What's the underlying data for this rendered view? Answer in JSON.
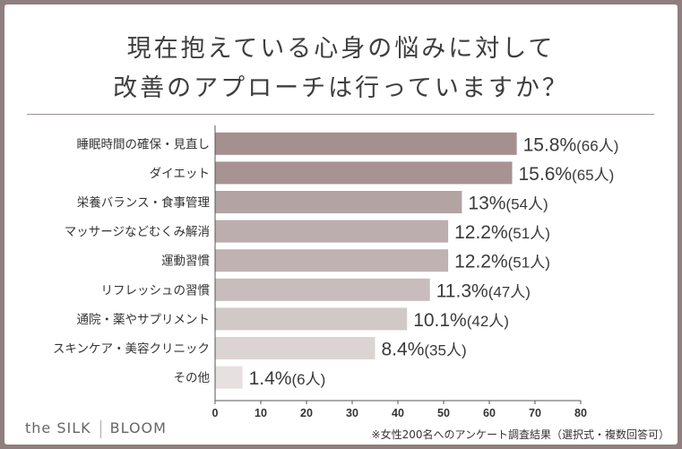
{
  "title_line1": "現在抱えている心身の悩みに対して",
  "title_line2": "改善のアプローチは行っていますか？",
  "brand_left": "the SILK",
  "brand_right": "BLOOM",
  "footnote": "※女性200名へのアンケート調査結果（選択式・複数回答可）",
  "chart_data": {
    "type": "bar",
    "orientation": "horizontal",
    "categories": [
      "睡眠時間の確保・見直し",
      "ダイエット",
      "栄養バランス・食事管理",
      "マッサージなどむくみ解消",
      "運動習慣",
      "リフレッシュの習慣",
      "通院・薬やサプリメント",
      "スキンケア・美容クリニック",
      "その他"
    ],
    "counts": [
      66,
      65,
      54,
      51,
      51,
      47,
      42,
      35,
      6
    ],
    "percent_labels": [
      "15.8%",
      "15.6%",
      "13%",
      "12.2%",
      "12.2%",
      "11.3%",
      "10.1%",
      "8.4%",
      "1.4%"
    ],
    "count_labels": [
      "(66人)",
      "(65人)",
      "(54人)",
      "(51人)",
      "(51人)",
      "(47人)",
      "(42人)",
      "(35人)",
      "(6人)"
    ],
    "xlim": [
      0,
      80
    ],
    "xticks": [
      "0",
      "10",
      "20",
      "30",
      "40",
      "50",
      "60",
      "70",
      "80"
    ],
    "colors": [
      "#a58f8f",
      "#a79393",
      "#b3a3a3",
      "#bcaeae",
      "#c0b2b2",
      "#c8bcbc",
      "#d1c8c8",
      "#dcd3d3",
      "#e7e0e0"
    ]
  }
}
